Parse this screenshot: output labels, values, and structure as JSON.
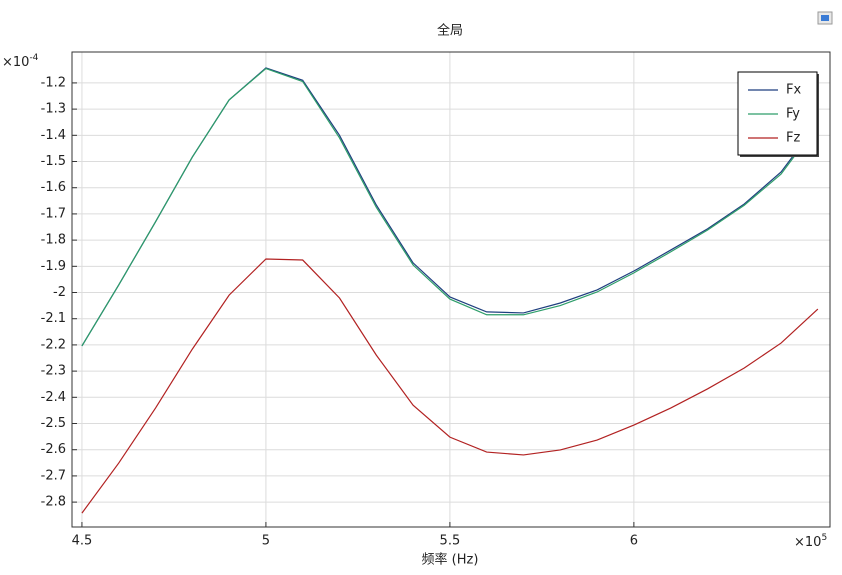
{
  "chart_data": {
    "type": "line",
    "title": "全局",
    "xlabel": "频率 (Hz)",
    "x_multiplier": {
      "base": "×10",
      "exponent": "5"
    },
    "y_multiplier": {
      "base": "×10",
      "exponent": "-4"
    },
    "x": [
      4.5,
      4.6,
      4.7,
      4.8,
      4.9,
      5.0,
      5.1,
      5.2,
      5.3,
      5.4,
      5.5,
      5.6,
      5.7,
      5.8,
      5.9,
      6.0,
      6.1,
      6.2,
      6.3,
      6.4,
      6.5
    ],
    "series": [
      {
        "name": "Fx",
        "color": "#1f3f7f",
        "values": [
          -2.204,
          -1.971,
          -1.73,
          -1.483,
          -1.265,
          -1.143,
          -1.19,
          -1.4,
          -1.666,
          -1.887,
          -2.017,
          -2.074,
          -2.078,
          -2.04,
          -1.99,
          -1.918,
          -1.838,
          -1.757,
          -1.662,
          -1.54,
          -1.353
        ]
      },
      {
        "name": "Fy",
        "color": "#2e9e6a",
        "values": [
          -2.204,
          -1.971,
          -1.73,
          -1.483,
          -1.265,
          -1.145,
          -1.195,
          -1.41,
          -1.675,
          -1.895,
          -2.025,
          -2.085,
          -2.085,
          -2.05,
          -1.998,
          -1.925,
          -1.845,
          -1.762,
          -1.667,
          -1.548,
          -1.36
        ]
      },
      {
        "name": "Fz",
        "color": "#b22222",
        "values": [
          -2.842,
          -2.651,
          -2.441,
          -2.216,
          -2.01,
          -1.872,
          -1.876,
          -2.021,
          -2.239,
          -2.43,
          -2.552,
          -2.609,
          -2.62,
          -2.601,
          -2.563,
          -2.506,
          -2.441,
          -2.368,
          -2.288,
          -2.193,
          -2.063
        ]
      }
    ],
    "xlim": [
      4.473,
      6.533
    ],
    "xticks": [
      4.5,
      5,
      5.5,
      6
    ],
    "ylim": [
      -2.895,
      -1.082
    ],
    "yticks": [
      -1.2,
      -1.3,
      -1.4,
      -1.5,
      -1.6,
      -1.7,
      -1.8,
      -1.9,
      -2,
      -2.1,
      -2.2,
      -2.3,
      -2.4,
      -2.5,
      -2.6,
      -2.7,
      -2.8
    ],
    "grid": true,
    "legend": "upper right"
  }
}
